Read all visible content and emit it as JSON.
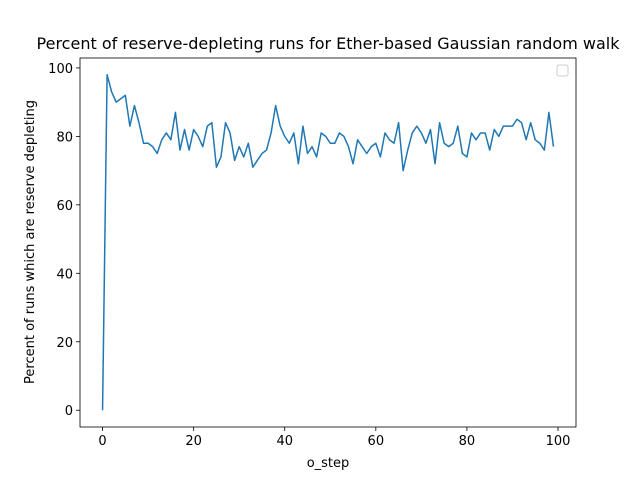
{
  "chart_data": {
    "type": "line",
    "title": "Percent of reserve-depleting runs for Ether-based Gaussian random walk",
    "xlabel": "o_step",
    "ylabel": "Percent of runs which are reserve depleting",
    "x": [
      0,
      1,
      2,
      3,
      4,
      5,
      6,
      7,
      8,
      9,
      10,
      11,
      12,
      13,
      14,
      15,
      16,
      17,
      18,
      19,
      20,
      21,
      22,
      23,
      24,
      25,
      26,
      27,
      28,
      29,
      30,
      31,
      32,
      33,
      34,
      35,
      36,
      37,
      38,
      39,
      40,
      41,
      42,
      43,
      44,
      45,
      46,
      47,
      48,
      49,
      50,
      51,
      52,
      53,
      54,
      55,
      56,
      57,
      58,
      59,
      60,
      61,
      62,
      63,
      64,
      65,
      66,
      67,
      68,
      69,
      70,
      71,
      72,
      73,
      74,
      75,
      76,
      77,
      78,
      79,
      80,
      81,
      82,
      83,
      84,
      85,
      86,
      87,
      88,
      89,
      90,
      91,
      92,
      93,
      94,
      95,
      96,
      97,
      98,
      99
    ],
    "series": [
      {
        "color": "#1f77b4",
        "values": [
          0,
          98,
          93,
          90,
          91,
          92,
          83,
          89,
          84,
          78,
          78,
          77,
          75,
          79,
          81,
          79,
          87,
          76,
          82,
          76,
          82,
          80,
          77,
          83,
          84,
          71,
          74,
          84,
          81,
          73,
          77,
          74,
          78,
          71,
          73,
          75,
          76,
          81,
          89,
          83,
          80,
          78,
          81,
          72,
          83,
          75,
          77,
          74,
          81,
          80,
          78,
          78,
          81,
          80,
          77,
          72,
          79,
          77,
          75,
          77,
          78,
          74,
          81,
          79,
          78,
          84,
          70,
          76,
          81,
          83,
          81,
          78,
          82,
          72,
          84,
          78,
          77,
          78,
          83,
          75,
          74,
          81,
          79,
          81,
          81,
          76,
          82,
          80,
          83,
          83,
          83,
          85,
          84,
          79,
          84,
          79,
          78,
          76,
          87,
          77
        ]
      }
    ],
    "xlim": [
      -4.95,
      103.95
    ],
    "ylim": [
      -4.9,
      102.9
    ],
    "xticks": [
      0,
      20,
      40,
      60,
      80,
      100
    ],
    "yticks": [
      0,
      20,
      40,
      60,
      80,
      100
    ],
    "legend": "upper right"
  }
}
